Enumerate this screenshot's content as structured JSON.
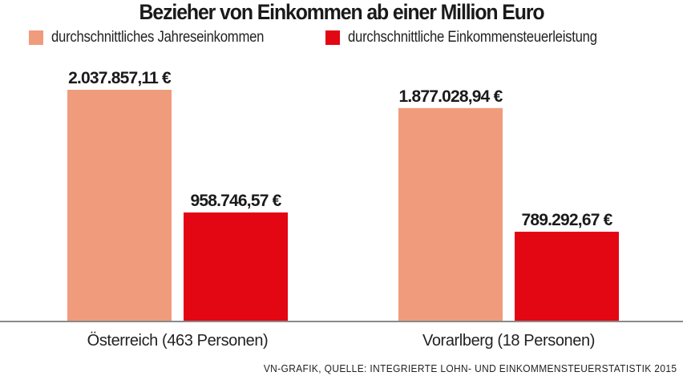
{
  "chart_data": {
    "type": "bar",
    "title": "Bezieher von Einkommen ab einer Million Euro",
    "categories": [
      "Österreich (463 Personen)",
      "Vorarlberg (18 Personen)"
    ],
    "series": [
      {
        "name": "durchschnittliches Jahreseinkommen",
        "color": "#f09b7c",
        "values": [
          2037857.11,
          1877028.94
        ],
        "labels": [
          "2.037.857,11 €",
          "1.877.028,94 €"
        ]
      },
      {
        "name": "durchschnittliche Einkommensteuerleistung",
        "color": "#e30613",
        "values": [
          958746.57,
          789292.67
        ],
        "labels": [
          "958.746,57 €",
          "789.292,67 €"
        ]
      }
    ],
    "xlabel": "",
    "ylabel": "",
    "ylim": [
      0,
      2037857.11
    ],
    "grid": false,
    "legend_position": "top-left",
    "axis_color": "#8a8a8a"
  },
  "source": "VN-GRAFIK, QUELLE: INTEGRIERTE LOHN- UND EINKOMMENSTEUERSTATISTIK 2015"
}
